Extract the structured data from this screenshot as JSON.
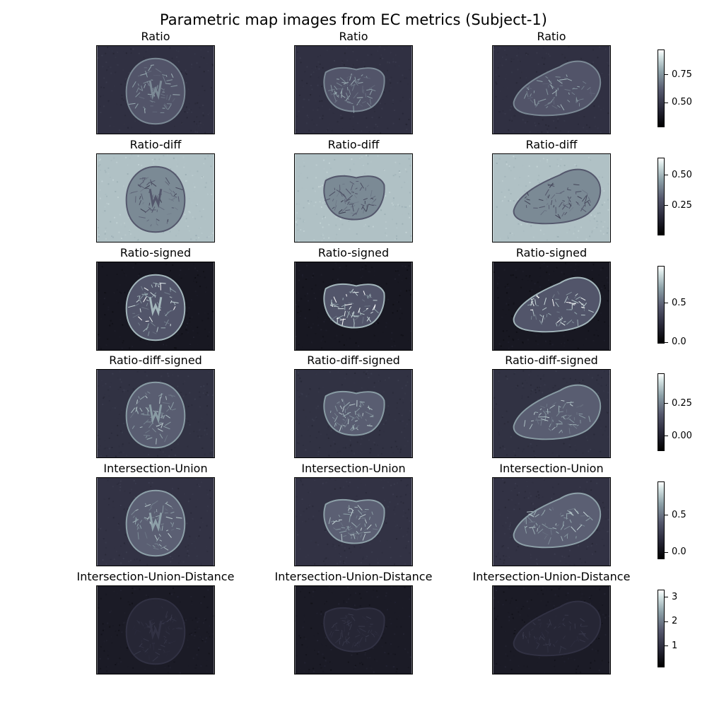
{
  "chart_data": {
    "type": "heatmap",
    "title": "Parametric map images from EC metrics (Subject-1)",
    "colormap": "bone",
    "rows": [
      {
        "name": "Ratio",
        "colorbar_ticks": [
          "0.50",
          "0.75"
        ],
        "colorbar_values": [
          0.5,
          0.75
        ],
        "vmin": 0.28,
        "vmax": 0.97,
        "background_level": 0.47,
        "tissue_level": 0.72
      },
      {
        "name": "Ratio-diff",
        "colorbar_ticks": [
          "0.25",
          "0.50"
        ],
        "colorbar_values": [
          0.25,
          0.5
        ],
        "vmin": 0.0,
        "vmax": 0.64,
        "background_level": 0.52,
        "tissue_level": 0.3
      },
      {
        "name": "Ratio-signed",
        "colorbar_ticks": [
          "0.0",
          "0.5"
        ],
        "colorbar_values": [
          0.0,
          0.5
        ],
        "vmin": -0.02,
        "vmax": 0.97,
        "background_level": 0.12,
        "tissue_level": 0.75
      },
      {
        "name": "Ratio-diff-signed",
        "colorbar_ticks": [
          "0.00",
          "0.25"
        ],
        "colorbar_values": [
          0.0,
          0.25
        ],
        "vmin": -0.12,
        "vmax": 0.48,
        "background_level": 0.05,
        "tissue_level": 0.3
      },
      {
        "name": "Intersection-Union",
        "colorbar_ticks": [
          "0.0",
          "0.5"
        ],
        "colorbar_values": [
          0.0,
          0.5
        ],
        "vmin": -0.1,
        "vmax": 0.95,
        "background_level": 0.2,
        "tissue_level": 0.65
      },
      {
        "name": "Intersection-Union-Distance",
        "colorbar_ticks": [
          "1",
          "2",
          "3"
        ],
        "colorbar_values": [
          1,
          2,
          3
        ],
        "vmin": 0.1,
        "vmax": 3.3,
        "background_level": 0.6,
        "tissue_level": 1.0
      }
    ],
    "columns": [
      {
        "shape": "axial"
      },
      {
        "shape": "coronal"
      },
      {
        "shape": "sagittal"
      }
    ]
  }
}
